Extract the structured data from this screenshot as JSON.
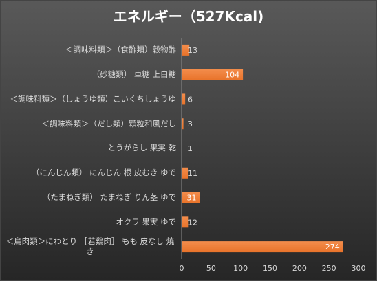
{
  "chart_data": {
    "type": "bar",
    "orientation": "horizontal",
    "title": "エネルギー（527Kcal)",
    "categories": [
      "＜調味料類＞（食酢類）穀物酢",
      "（砂糖類） 車糖 上白糖",
      "＜調味料類＞（しょうゆ類）こいくちしょうゆ",
      "＜調味料類＞（だし類）顆粒和風だし",
      "とうがらし 果実 乾",
      "（にんじん類） にんじん 根 皮むき ゆで",
      "（たまねぎ類） たまねぎ りん茎 ゆで",
      "オクラ 果実 ゆで",
      "＜鳥肉類＞にわとり ［若鶏肉］ もも 皮なし 焼き"
    ],
    "values": [
      13,
      104,
      6,
      3,
      1,
      11,
      31,
      12,
      274
    ],
    "xlim": [
      0,
      300
    ],
    "xticks": [
      0,
      50,
      100,
      150,
      200,
      250,
      300
    ],
    "grid": false
  },
  "colors": {
    "background_top": "#595959",
    "background_bottom": "#262626",
    "bar": "#e8732a",
    "bar_light": "#f38d4c",
    "axis": "#8c8c8c",
    "text": "#d9d9d9",
    "label_inside": "#ffffff"
  }
}
